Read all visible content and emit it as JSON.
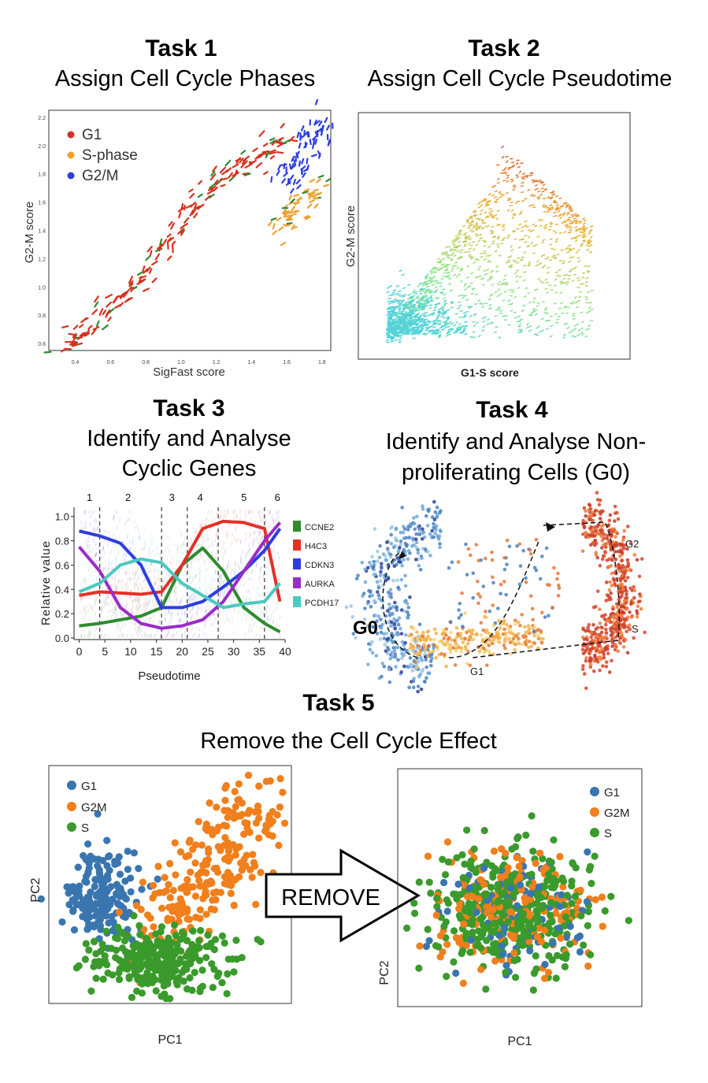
{
  "tasks": [
    {
      "heading": "Task 1",
      "subtitle": "Assign Cell Cycle Phases"
    },
    {
      "heading": "Task 2",
      "subtitle": "Assign Cell Cycle Pseudotime"
    },
    {
      "heading": "Task 3",
      "subtitle_lines": [
        "Identify and Analyse",
        "Cyclic Genes"
      ]
    },
    {
      "heading": "Task 4",
      "subtitle_lines": [
        "Identify and Analyse Non-",
        "proliferating Cells (G0)"
      ]
    },
    {
      "heading": "Task 5",
      "subtitle": "Remove the Cell Cycle Effect"
    }
  ],
  "colors": {
    "g1_red": "#d7301f",
    "s_orange": "#f0a030",
    "g2m_blue": "#2c3fe0",
    "pc_blue": "#3a75b0",
    "pc_orange": "#f07f1c",
    "pc_green": "#3a9a2c",
    "ccne2": "#2e8b2e",
    "h4c3": "#e53027",
    "cdkn3": "#2d3ee0",
    "aurka": "#9b2cc8",
    "pcdh17": "#4cc9c0"
  },
  "chart_data": [
    {
      "id": "task1",
      "type": "scatter",
      "xlabel": "SigFast score",
      "ylabel": "G2-M score",
      "xticks": [
        "0.4",
        "0.6",
        "0.8",
        "1.0",
        "1.2",
        "1.4",
        "1.6",
        "1.8"
      ],
      "yticks": [
        "0.6",
        "0.8",
        "1.0",
        "1.2",
        "1.4",
        "1.6",
        "1.8",
        "2.0",
        "2.2"
      ],
      "xlim": [
        0.25,
        1.85
      ],
      "ylim": [
        0.55,
        2.25
      ],
      "legend": [
        "G1",
        "S-phase",
        "G2/M"
      ],
      "series": [
        {
          "name": "G1",
          "points": [
            [
              0.3,
              0.58
            ],
            [
              0.4,
              0.62
            ],
            [
              0.5,
              0.72
            ],
            [
              0.6,
              0.85
            ],
            [
              0.7,
              0.98
            ],
            [
              0.8,
              1.12
            ],
            [
              0.9,
              1.28
            ],
            [
              1.0,
              1.45
            ],
            [
              1.1,
              1.6
            ],
            [
              1.2,
              1.72
            ],
            [
              1.3,
              1.82
            ],
            [
              1.4,
              1.92
            ],
            [
              1.5,
              1.98
            ],
            [
              1.6,
              2.02
            ]
          ]
        },
        {
          "name": "S-phase",
          "points": [
            [
              1.55,
              1.45
            ],
            [
              1.6,
              1.5
            ],
            [
              1.65,
              1.55
            ],
            [
              1.7,
              1.6
            ],
            [
              1.75,
              1.7
            ]
          ]
        },
        {
          "name": "G2/M",
          "points": [
            [
              1.6,
              1.75
            ],
            [
              1.65,
              1.85
            ],
            [
              1.7,
              1.95
            ],
            [
              1.75,
              2.05
            ],
            [
              1.8,
              2.1
            ]
          ]
        }
      ]
    },
    {
      "id": "task2",
      "type": "scatter",
      "xlabel": "G1-S score",
      "ylabel": "G2-M score",
      "color_map": "pseudotime (cyan to red)"
    },
    {
      "id": "task3",
      "type": "line",
      "xlabel": "Pseudotime",
      "ylabel": "Relative value",
      "xticks": [
        "0",
        "5",
        "10",
        "15",
        "20",
        "25",
        "30",
        "35",
        "40"
      ],
      "yticks": [
        "0.0",
        "0.2",
        "0.4",
        "0.6",
        "0.8",
        "1.0"
      ],
      "xlim": [
        -1,
        40
      ],
      "ylim": [
        0,
        1.05
      ],
      "phase_markers": [
        "1",
        "2",
        "3",
        "4",
        "5",
        "6"
      ],
      "phase_marker_x": [
        2,
        9.5,
        18,
        23.5,
        32,
        38.5
      ],
      "boundaries_x": [
        4,
        16,
        21,
        27,
        36
      ],
      "legend": [
        "CCNE2",
        "H4C3",
        "CDKN3",
        "AURKA",
        "PCDH17"
      ],
      "series": [
        {
          "name": "CCNE2",
          "x": [
            0,
            4,
            8,
            12,
            16,
            20,
            24,
            28,
            32,
            36,
            39
          ],
          "y": [
            0.1,
            0.12,
            0.15,
            0.18,
            0.25,
            0.6,
            0.74,
            0.55,
            0.25,
            0.12,
            0.05
          ]
        },
        {
          "name": "H4C3",
          "x": [
            0,
            4,
            8,
            12,
            16,
            20,
            24,
            28,
            32,
            36,
            39
          ],
          "y": [
            0.35,
            0.38,
            0.37,
            0.36,
            0.38,
            0.6,
            0.9,
            0.96,
            0.95,
            0.9,
            0.3
          ]
        },
        {
          "name": "CDKN3",
          "x": [
            0,
            4,
            8,
            12,
            16,
            20,
            24,
            28,
            32,
            36,
            39
          ],
          "y": [
            0.88,
            0.84,
            0.78,
            0.6,
            0.25,
            0.25,
            0.3,
            0.42,
            0.55,
            0.72,
            0.9
          ]
        },
        {
          "name": "AURKA",
          "x": [
            0,
            4,
            8,
            12,
            16,
            20,
            24,
            28,
            32,
            36,
            39
          ],
          "y": [
            0.75,
            0.55,
            0.25,
            0.12,
            0.08,
            0.1,
            0.15,
            0.3,
            0.55,
            0.8,
            0.95
          ]
        },
        {
          "name": "PCDH17",
          "x": [
            0,
            4,
            8,
            12,
            16,
            20,
            24,
            28,
            32,
            36,
            39
          ],
          "y": [
            0.38,
            0.45,
            0.6,
            0.65,
            0.62,
            0.45,
            0.35,
            0.25,
            0.28,
            0.3,
            0.45
          ]
        }
      ]
    },
    {
      "id": "task4",
      "type": "scatter",
      "annotations": [
        "G0",
        "G1",
        "S",
        "G2"
      ]
    },
    {
      "id": "task5-before",
      "type": "scatter",
      "xlabel": "PC1",
      "ylabel": "PC2",
      "legend": [
        "G1",
        "G2M",
        "S"
      ]
    },
    {
      "id": "task5-after",
      "type": "scatter",
      "xlabel": "PC1",
      "ylabel": "PC2",
      "legend": [
        "G1",
        "G2M",
        "S"
      ]
    }
  ],
  "arrow": {
    "label": "REMOVE"
  }
}
